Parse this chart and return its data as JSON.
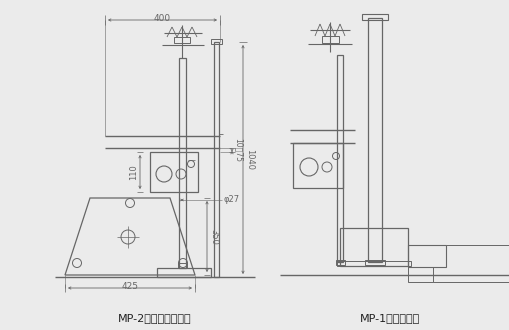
{
  "bg_color": "#ebebeb",
  "line_color": "#666666",
  "dim_color": "#666666",
  "text_color": "#222222",
  "title_left": "MP-2（スタンド式）",
  "title_right": "MP-1（組込式）",
  "dim_400": "400",
  "dim_110": "110",
  "dim_1040": "1040",
  "dim_1075": "10～75",
  "dim_phi27": "φ27",
  "dim_350": "350",
  "dim_425": "425"
}
